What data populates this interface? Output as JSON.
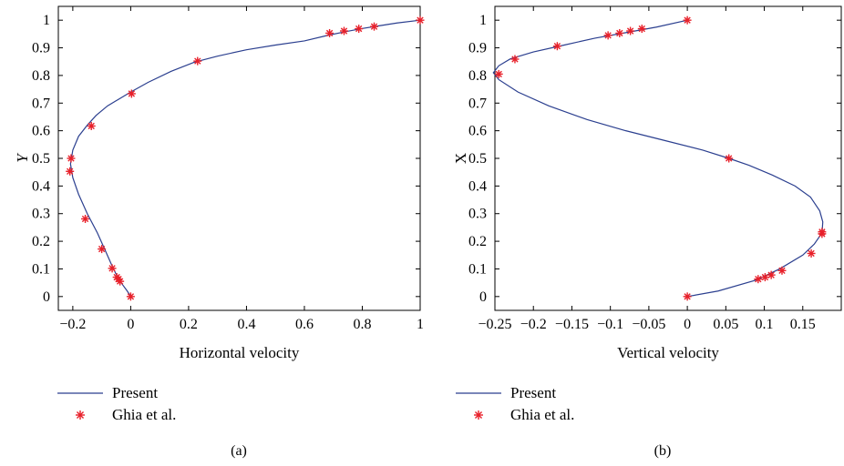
{
  "chart_data": [
    {
      "type": "line",
      "caption": "(a)",
      "xlabel": "Horizontal velocity",
      "ylabel": "Y",
      "xlim": [
        -0.25,
        1.0
      ],
      "ylim": [
        -0.05,
        1.05
      ],
      "x_ticks": [
        -0.2,
        0,
        0.2,
        0.4,
        0.6,
        0.8,
        1
      ],
      "x_tick_labels": [
        "−0.2",
        "0",
        "0.2",
        "0.4",
        "0.6",
        "0.8",
        "1"
      ],
      "y_ticks": [
        0,
        0.1,
        0.2,
        0.3,
        0.4,
        0.5,
        0.6,
        0.7,
        0.8,
        0.9,
        1
      ],
      "y_tick_labels": [
        "0",
        "0.1",
        "0.2",
        "0.3",
        "0.4",
        "0.5",
        "0.6",
        "0.7",
        "0.8",
        "0.9",
        "1"
      ],
      "grid": false,
      "legend_position": "below",
      "series": [
        {
          "name": "Present",
          "type": "line",
          "color": "#2b3f8f",
          "x": [
            0,
            -0.012,
            -0.026,
            -0.04,
            -0.05,
            -0.064,
            -0.085,
            -0.115,
            -0.15,
            -0.18,
            -0.2,
            -0.208,
            -0.2,
            -0.18,
            -0.15,
            -0.12,
            -0.08,
            -0.04,
            0,
            0.06,
            0.14,
            0.22,
            0.3,
            0.4,
            0.5,
            0.6,
            0.68,
            0.74,
            0.8,
            0.86,
            0.92,
            1.0
          ],
          "y": [
            0,
            0.02,
            0.04,
            0.06,
            0.08,
            0.11,
            0.16,
            0.23,
            0.3,
            0.37,
            0.43,
            0.48,
            0.53,
            0.58,
            0.62,
            0.655,
            0.69,
            0.715,
            0.74,
            0.775,
            0.815,
            0.848,
            0.87,
            0.893,
            0.91,
            0.925,
            0.945,
            0.958,
            0.97,
            0.98,
            0.99,
            1.0
          ]
        },
        {
          "name": "Ghia et al.",
          "type": "scatter",
          "color": "#e8202a",
          "marker": "asterisk",
          "x": [
            0,
            -0.037,
            -0.042,
            -0.048,
            -0.064,
            -0.1,
            -0.157,
            -0.21,
            -0.206,
            -0.136,
            0.003,
            0.231,
            0.687,
            0.737,
            0.788,
            0.841,
            1.0
          ],
          "y": [
            0,
            0.055,
            0.063,
            0.07,
            0.102,
            0.172,
            0.281,
            0.453,
            0.5,
            0.617,
            0.734,
            0.852,
            0.953,
            0.961,
            0.969,
            0.977,
            1.0
          ]
        }
      ]
    },
    {
      "type": "line",
      "caption": "(b)",
      "xlabel": "Vertical velocity",
      "ylabel": "X",
      "xlim": [
        -0.25,
        0.2
      ],
      "ylim": [
        -0.05,
        1.05
      ],
      "x_ticks": [
        -0.25,
        -0.2,
        -0.15,
        -0.1,
        -0.05,
        0,
        0.05,
        0.1,
        0.15
      ],
      "x_tick_labels": [
        "−0.25",
        "−0.2",
        "−0.15",
        "−0.1",
        "−0.05",
        "0",
        "0.05",
        "0.1",
        "0.15"
      ],
      "y_ticks": [
        0,
        0.1,
        0.2,
        0.3,
        0.4,
        0.5,
        0.6,
        0.7,
        0.8,
        0.9,
        1
      ],
      "y_tick_labels": [
        "0",
        "0.1",
        "0.2",
        "0.3",
        "0.4",
        "0.5",
        "0.6",
        "0.7",
        "0.8",
        "0.9",
        "1"
      ],
      "grid": false,
      "legend_position": "below",
      "series": [
        {
          "name": "Present",
          "type": "line",
          "color": "#2b3f8f",
          "x": [
            0,
            0.04,
            0.09,
            0.12,
            0.15,
            0.165,
            0.175,
            0.176,
            0.172,
            0.16,
            0.14,
            0.11,
            0.08,
            0.054,
            0.02,
            -0.03,
            -0.08,
            -0.13,
            -0.18,
            -0.22,
            -0.245,
            -0.252,
            -0.245,
            -0.23,
            -0.2,
            -0.16,
            -0.12,
            -0.08,
            -0.04,
            0
          ],
          "y": [
            0,
            0.02,
            0.06,
            0.1,
            0.15,
            0.19,
            0.23,
            0.27,
            0.31,
            0.36,
            0.4,
            0.44,
            0.475,
            0.5,
            0.53,
            0.565,
            0.6,
            0.64,
            0.69,
            0.74,
            0.785,
            0.81,
            0.835,
            0.86,
            0.885,
            0.91,
            0.935,
            0.955,
            0.975,
            1.0
          ]
        },
        {
          "name": "Ghia et al.",
          "type": "scatter",
          "color": "#e8202a",
          "marker": "asterisk",
          "x": [
            0,
            0.092,
            0.101,
            0.109,
            0.123,
            0.161,
            0.175,
            0.175,
            0.054,
            -0.245,
            -0.224,
            -0.169,
            -0.103,
            -0.088,
            -0.074,
            -0.059,
            0
          ],
          "y": [
            0,
            0.063,
            0.07,
            0.078,
            0.094,
            0.156,
            0.227,
            0.234,
            0.5,
            0.805,
            0.859,
            0.906,
            0.945,
            0.953,
            0.961,
            0.969,
            1.0
          ]
        }
      ]
    }
  ]
}
